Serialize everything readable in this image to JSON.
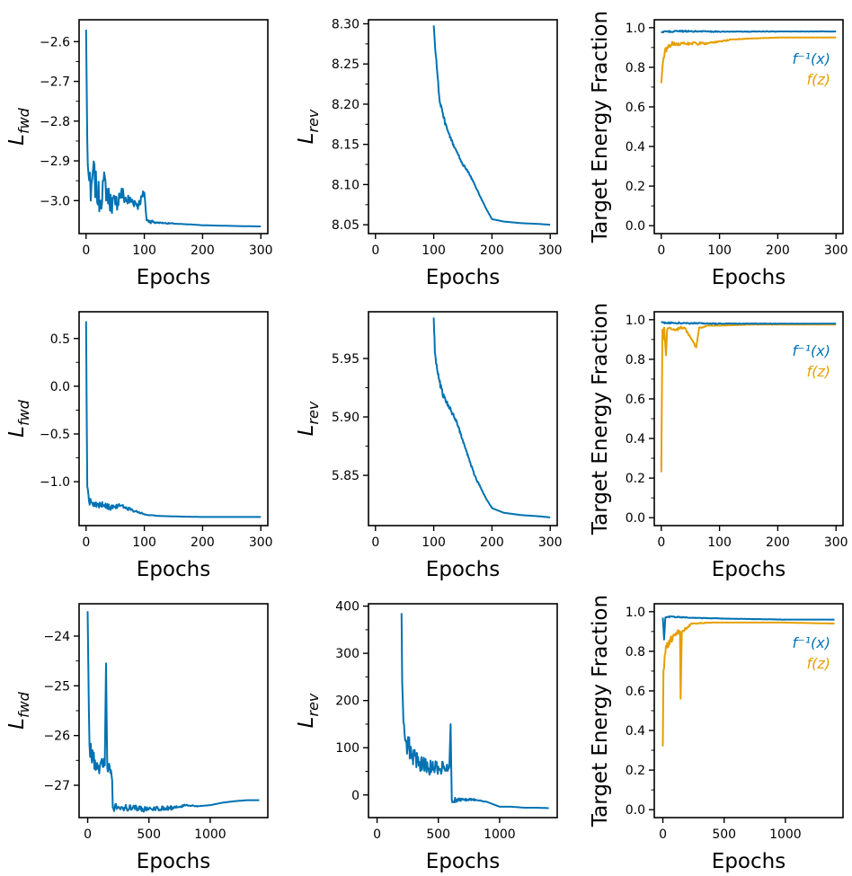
{
  "colors": {
    "blue": "#0072B2",
    "orange": "#E69F00",
    "axis": "#000000"
  },
  "chart_data": [
    {
      "type": "line",
      "panel": "r0c0",
      "xlabel": "Epochs",
      "ylabel": "L",
      "ylabel_sub": "fwd",
      "xlim": [
        -12,
        312
      ],
      "ylim": [
        -3.083,
        -2.545
      ],
      "xticks": [
        0,
        100,
        200,
        300
      ],
      "yticks": [
        -2.6,
        -2.7,
        -2.8,
        -2.9,
        -3.0
      ],
      "series": [
        {
          "color": "blue",
          "noise": 0.055,
          "x": [
            0,
            2,
            4,
            8,
            12,
            18,
            25,
            30,
            40,
            50,
            60,
            70,
            80,
            90,
            100,
            104,
            120,
            150,
            180,
            200,
            230,
            260,
            300
          ],
          "y": [
            -2.57,
            -2.85,
            -2.93,
            -3.0,
            -2.92,
            -2.98,
            -3.0,
            -2.95,
            -3.0,
            -3.01,
            -2.98,
            -3.0,
            -3.0,
            -3.01,
            -2.98,
            -3.05,
            -3.055,
            -3.058,
            -3.06,
            -3.062,
            -3.063,
            -3.064,
            -3.065
          ]
        }
      ]
    },
    {
      "type": "line",
      "panel": "r0c1",
      "xlabel": "Epochs",
      "ylabel": "L",
      "ylabel_sub": "rev",
      "xlim": [
        -12,
        312
      ],
      "ylim": [
        8.039,
        8.305
      ],
      "xticks": [
        0,
        100,
        200,
        300
      ],
      "yticks": [
        8.3,
        8.25,
        8.2,
        8.15,
        8.1,
        8.05
      ],
      "series": [
        {
          "color": "blue",
          "noise": 0.004,
          "x": [
            100,
            103,
            106,
            110,
            115,
            120,
            125,
            130,
            140,
            150,
            160,
            170,
            180,
            190,
            200,
            220,
            250,
            280,
            300
          ],
          "y": [
            8.298,
            8.265,
            8.24,
            8.205,
            8.19,
            8.175,
            8.165,
            8.155,
            8.14,
            8.125,
            8.115,
            8.1,
            8.085,
            8.07,
            8.057,
            8.054,
            8.052,
            8.051,
            8.05
          ]
        }
      ]
    },
    {
      "type": "line",
      "panel": "r0c2",
      "xlabel": "Epochs",
      "ylabel": "Target Energy Fraction",
      "xlim": [
        -12,
        312
      ],
      "ylim": [
        -0.04,
        1.04
      ],
      "xticks": [
        0,
        100,
        200,
        300
      ],
      "yticks": [
        1.0,
        0.8,
        0.6,
        0.4,
        0.2,
        0.0
      ],
      "legend": [
        {
          "text": "f⁻¹(x)",
          "color": "blue"
        },
        {
          "text": "f(z)",
          "color": "orange"
        }
      ],
      "series": [
        {
          "color": "orange",
          "noise": 0.02,
          "x": [
            0,
            2,
            4,
            6,
            10,
            20,
            40,
            60,
            80,
            100,
            120,
            150,
            200,
            250,
            300
          ],
          "y": [
            0.72,
            0.8,
            0.85,
            0.88,
            0.9,
            0.92,
            0.92,
            0.92,
            0.92,
            0.93,
            0.94,
            0.945,
            0.95,
            0.95,
            0.95
          ]
        },
        {
          "color": "blue",
          "noise": 0.004,
          "x": [
            0,
            50,
            100,
            200,
            300
          ],
          "y": [
            0.98,
            0.982,
            0.98,
            0.981,
            0.981
          ]
        }
      ]
    },
    {
      "type": "line",
      "panel": "r1c0",
      "xlabel": "Epochs",
      "ylabel": "L",
      "ylabel_sub": "fwd",
      "xlim": [
        -12,
        312
      ],
      "ylim": [
        -1.46,
        0.78
      ],
      "xticks": [
        0,
        100,
        200,
        300
      ],
      "yticks": [
        0.5,
        0.0,
        -0.5,
        -1.0
      ],
      "series": [
        {
          "color": "blue",
          "noise": 0.05,
          "x": [
            0,
            2,
            5,
            10,
            20,
            30,
            40,
            50,
            60,
            70,
            80,
            90,
            100,
            110,
            130,
            160,
            200,
            250,
            300
          ],
          "y": [
            0.68,
            -1.05,
            -1.2,
            -1.22,
            -1.24,
            -1.25,
            -1.27,
            -1.26,
            -1.25,
            -1.28,
            -1.3,
            -1.32,
            -1.34,
            -1.35,
            -1.36,
            -1.365,
            -1.37,
            -1.37,
            -1.37
          ]
        }
      ]
    },
    {
      "type": "line",
      "panel": "r1c1",
      "xlabel": "Epochs",
      "ylabel": "L",
      "ylabel_sub": "rev",
      "xlim": [
        -12,
        312
      ],
      "ylim": [
        5.807,
        5.99
      ],
      "xticks": [
        0,
        100,
        200,
        300
      ],
      "yticks": [
        5.95,
        5.9,
        5.85
      ],
      "series": [
        {
          "color": "blue",
          "noise": 0.003,
          "x": [
            100,
            102,
            105,
            110,
            115,
            120,
            130,
            140,
            150,
            160,
            170,
            180,
            190,
            200,
            220,
            250,
            280,
            300
          ],
          "y": [
            5.985,
            5.955,
            5.945,
            5.93,
            5.92,
            5.915,
            5.905,
            5.895,
            5.88,
            5.865,
            5.85,
            5.84,
            5.83,
            5.822,
            5.818,
            5.816,
            5.815,
            5.814
          ]
        }
      ]
    },
    {
      "type": "line",
      "panel": "r1c2",
      "xlabel": "Epochs",
      "ylabel": "Target Energy Fraction",
      "xlim": [
        -12,
        312
      ],
      "ylim": [
        -0.04,
        1.04
      ],
      "xticks": [
        0,
        100,
        200,
        300
      ],
      "yticks": [
        1.0,
        0.8,
        0.6,
        0.4,
        0.2,
        0.0
      ],
      "legend": [
        {
          "text": "f⁻¹(x)",
          "color": "blue"
        },
        {
          "text": "f(z)",
          "color": "orange"
        }
      ],
      "series": [
        {
          "color": "orange",
          "noise": 0.018,
          "x": [
            0,
            2,
            3,
            5,
            8,
            10,
            15,
            20,
            40,
            60,
            65,
            70,
            80,
            100,
            150,
            200,
            300
          ],
          "y": [
            0.23,
            0.95,
            0.9,
            0.96,
            0.82,
            0.95,
            0.96,
            0.95,
            0.96,
            0.86,
            0.96,
            0.96,
            0.97,
            0.97,
            0.975,
            0.975,
            0.975
          ]
        },
        {
          "color": "blue",
          "noise": 0.004,
          "x": [
            0,
            50,
            100,
            200,
            300
          ],
          "y": [
            0.985,
            0.982,
            0.98,
            0.98,
            0.98
          ]
        }
      ]
    },
    {
      "type": "line",
      "panel": "r2c0",
      "xlabel": "Epochs",
      "ylabel": "L",
      "ylabel_sub": "fwd",
      "xlim": [
        -70,
        1470
      ],
      "ylim": [
        -27.65,
        -23.35
      ],
      "xticks": [
        0,
        500,
        1000
      ],
      "yticks": [
        -24,
        -25,
        -26,
        -27
      ],
      "series": [
        {
          "color": "blue",
          "noise": 0.25,
          "x": [
            0,
            5,
            15,
            30,
            60,
            100,
            140,
            150,
            160,
            190,
            200,
            205,
            300,
            500,
            700,
            800,
            900,
            1000,
            1100,
            1200,
            1300,
            1400
          ],
          "y": [
            -23.5,
            -24.5,
            -26.2,
            -26.4,
            -26.5,
            -26.6,
            -26.6,
            -24.55,
            -26.65,
            -26.7,
            -26.9,
            -27.45,
            -27.45,
            -27.48,
            -27.45,
            -27.4,
            -27.42,
            -27.4,
            -27.35,
            -27.32,
            -27.3,
            -27.3
          ]
        }
      ]
    },
    {
      "type": "line",
      "panel": "r2c1",
      "xlabel": "Epochs",
      "ylabel": "L",
      "ylabel_sub": "rev",
      "xlim": [
        -70,
        1470
      ],
      "ylim": [
        -48,
        405
      ],
      "xticks": [
        0,
        500,
        1000
      ],
      "yticks": [
        400,
        300,
        200,
        100,
        0
      ],
      "series": [
        {
          "color": "blue",
          "noise": 30,
          "x": [
            200,
            205,
            210,
            220,
            240,
            280,
            330,
            400,
            450,
            500,
            550,
            590,
            600,
            610,
            650,
            700,
            800,
            900,
            1000,
            1100,
            1200,
            1300,
            1400
          ],
          "y": [
            385,
            240,
            200,
            150,
            110,
            90,
            70,
            60,
            55,
            60,
            55,
            60,
            150,
            -10,
            -10,
            -10,
            -10,
            -15,
            -25,
            -25,
            -27,
            -27,
            -28
          ]
        }
      ]
    },
    {
      "type": "line",
      "panel": "r2c2",
      "xlabel": "Epochs",
      "ylabel": "Target Energy Fraction",
      "xlim": [
        -70,
        1470
      ],
      "ylim": [
        -0.04,
        1.04
      ],
      "xticks": [
        0,
        500,
        1000
      ],
      "yticks": [
        1.0,
        0.8,
        0.6,
        0.4,
        0.2,
        0.0
      ],
      "legend": [
        {
          "text": "f⁻¹(x)",
          "color": "blue"
        },
        {
          "text": "f(z)",
          "color": "orange"
        }
      ],
      "series": [
        {
          "color": "orange",
          "noise": 0.03,
          "x": [
            0,
            5,
            15,
            30,
            60,
            100,
            140,
            145,
            155,
            200,
            230,
            400,
            700,
            1000,
            1400
          ],
          "y": [
            0.32,
            0.7,
            0.78,
            0.82,
            0.86,
            0.88,
            0.9,
            0.56,
            0.9,
            0.92,
            0.94,
            0.945,
            0.945,
            0.945,
            0.94
          ]
        },
        {
          "color": "blue",
          "noise": 0.005,
          "x": [
            0,
            10,
            20,
            60,
            200,
            500,
            1000,
            1400
          ],
          "y": [
            0.97,
            0.86,
            0.97,
            0.975,
            0.97,
            0.965,
            0.96,
            0.96
          ]
        }
      ]
    }
  ]
}
